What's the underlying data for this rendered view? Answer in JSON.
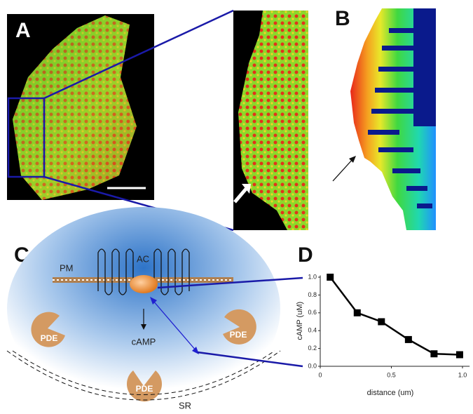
{
  "panels": {
    "labels": [
      "A",
      "B",
      "C",
      "D"
    ],
    "diagram": {
      "pm": "PM",
      "ac": "AC",
      "camp": "cAMP",
      "pde": [
        "PDE",
        "PDE",
        "PDE"
      ],
      "sr": "SR"
    }
  },
  "chart_data": {
    "type": "line",
    "xlabel": "distance (um)",
    "ylabel": "cAMP (uM)",
    "x": [
      0.07,
      0.26,
      0.43,
      0.62,
      0.8,
      0.98
    ],
    "series": [
      {
        "name": "cAMP",
        "color": "#000000",
        "values": [
          1.0,
          0.6,
          0.5,
          0.3,
          0.14,
          0.13
        ]
      }
    ],
    "xlim": [
      0,
      1.05
    ],
    "ylim": [
      0,
      1.02
    ],
    "xticks": [
      0,
      0.5,
      {
        "value": 1,
        "label": "1.0"
      }
    ],
    "yticks": [
      {
        "value": 0,
        "label": "0.0"
      },
      0.2,
      0.4,
      0.6,
      0.8,
      {
        "value": 1,
        "label": "1.0"
      }
    ]
  }
}
